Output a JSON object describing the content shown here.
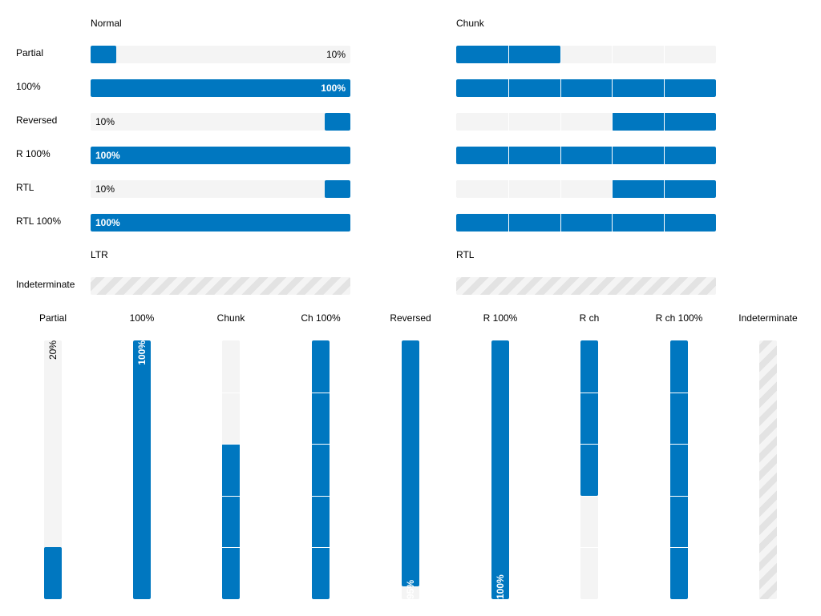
{
  "colors": {
    "fill": "#0077c0",
    "track": "#f4f4f4",
    "stripe": "#e3e3e3"
  },
  "headers": {
    "normal": "Normal",
    "chunk": "Chunk",
    "ltr": "LTR",
    "rtl": "RTL"
  },
  "rows": [
    {
      "label": "Partial",
      "text": "10%",
      "value": 0.1,
      "chunk_value": 0.4,
      "align": "end"
    },
    {
      "label": "100%",
      "text": "100%",
      "value": 1.0,
      "chunk_value": 1.0
    },
    {
      "label": "Reversed",
      "text": "10%",
      "value": 0.1,
      "chunk_value": 0.4,
      "reversed": true
    },
    {
      "label": "R 100%",
      "text": "100%",
      "value": 1.0,
      "chunk_value": 1.0,
      "reversed": true
    },
    {
      "label": "RTL",
      "text": "10%",
      "value": 0.1,
      "chunk_value": 0.4,
      "reversed": true
    },
    {
      "label": "RTL 100%",
      "text": "100%",
      "value": 1.0,
      "chunk_value": 1.0,
      "reversed": true
    }
  ],
  "indeterminate_label": "Indeterminate",
  "vertical": [
    {
      "label": "Partial",
      "text": "20%",
      "value": 0.2,
      "type": "normal"
    },
    {
      "label": "100%",
      "text": "100%",
      "value": 1.0,
      "type": "normal"
    },
    {
      "label": "Chunk",
      "text": "",
      "value": 0.6,
      "type": "chunk"
    },
    {
      "label": "Ch 100%",
      "text": "",
      "value": 1.0,
      "type": "chunk"
    },
    {
      "label": "Reversed",
      "text": "95%",
      "value": 0.95,
      "type": "reversed"
    },
    {
      "label": "R 100%",
      "text": "100%",
      "value": 1.0,
      "type": "reversed"
    },
    {
      "label": "R ch",
      "text": "",
      "value": 0.6,
      "type": "reversed-chunk"
    },
    {
      "label": "R ch 100%",
      "text": "",
      "value": 1.0,
      "type": "reversed-chunk"
    },
    {
      "label": "Indeterminate",
      "text": "",
      "value": 0,
      "type": "indeterminate"
    }
  ]
}
